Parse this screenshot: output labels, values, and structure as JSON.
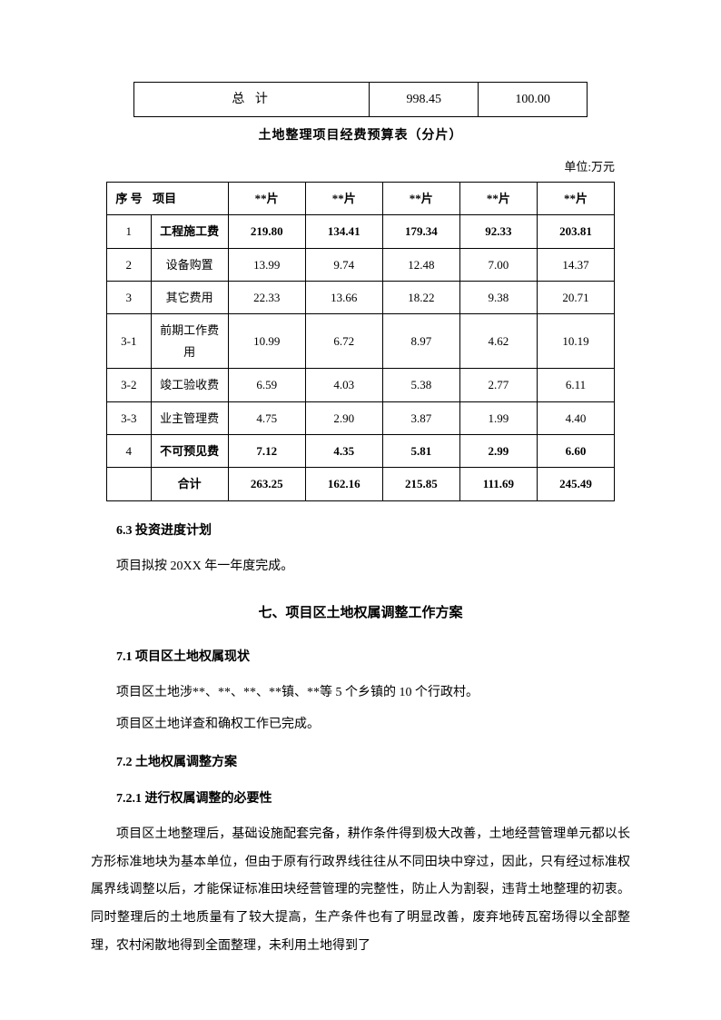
{
  "table1": {
    "label": "总 计",
    "v1": "998.45",
    "v2": "100.00"
  },
  "caption": "土地整理项目经费预算表（分片）",
  "unit": "单位:万元",
  "table2": {
    "head": {
      "c0": "序 号",
      "c1": "项目",
      "c2": "**片",
      "c3": "**片",
      "c4": "**片",
      "c5": "**片",
      "c6": "**片"
    },
    "rows": [
      {
        "bold": true,
        "c0": "1",
        "c1": "工程施工费",
        "c2": "219.80",
        "c3": "134.41",
        "c4": "179.34",
        "c5": "92.33",
        "c6": "203.81"
      },
      {
        "bold": false,
        "c0": "2",
        "c1": "设备购置",
        "c2": "13.99",
        "c3": "9.74",
        "c4": "12.48",
        "c5": "7.00",
        "c6": "14.37"
      },
      {
        "bold": false,
        "c0": "3",
        "c1": "其它费用",
        "c2": "22.33",
        "c3": "13.66",
        "c4": "18.22",
        "c5": "9.38",
        "c6": "20.71"
      },
      {
        "bold": false,
        "c0": "3-1",
        "c1": "前期工作费用",
        "c2": "10.99",
        "c3": "6.72",
        "c4": "8.97",
        "c5": "4.62",
        "c6": "10.19"
      },
      {
        "bold": false,
        "c0": "3-2",
        "c1": "竣工验收费",
        "c2": "6.59",
        "c3": "4.03",
        "c4": "5.38",
        "c5": "2.77",
        "c6": "6.11"
      },
      {
        "bold": false,
        "c0": "3-3",
        "c1": "业主管理费",
        "c2": "4.75",
        "c3": "2.90",
        "c4": "3.87",
        "c5": "1.99",
        "c6": "4.40"
      },
      {
        "bold": true,
        "c0": "4",
        "c1": "不可预见费",
        "c2": "7.12",
        "c3": "4.35",
        "c4": "5.81",
        "c5": "2.99",
        "c6": "6.60"
      },
      {
        "bold": true,
        "c0": "",
        "c1": "合计",
        "c2": "263.25",
        "c3": "162.16",
        "c4": "215.85",
        "c5": "111.69",
        "c6": "245.49"
      }
    ]
  },
  "text": {
    "h63": "6.3 投资进度计划",
    "p63": "项目拟按 20XX 年一年度完成。",
    "hch7": "七、项目区土地权属调整工作方案",
    "h71": "7.1 项目区土地权属现状",
    "p71a": "项目区土地涉**、**、**、**镇、**等 5 个乡镇的 10 个行政村。",
    "p71b": "项目区土地详查和确权工作已完成。",
    "h72": "7.2 土地权属调整方案",
    "h721": "7.2.1  进行权属调整的必要性",
    "p721": "项目区土地整理后，基础设施配套完备，耕作条件得到极大改善，土地经营管理单元都以长方形标准地块为基本单位，但由于原有行政界线往往从不同田块中穿过，因此，只有经过标准权属界线调整以后，才能保证标准田块经营管理的完整性，防止人为割裂，违背土地整理的初衷。同时整理后的土地质量有了较大提高，生产条件也有了明显改善，废弃地砖瓦窑场得以全部整理，农村闲散地得到全面整理，未利用土地得到了"
  }
}
